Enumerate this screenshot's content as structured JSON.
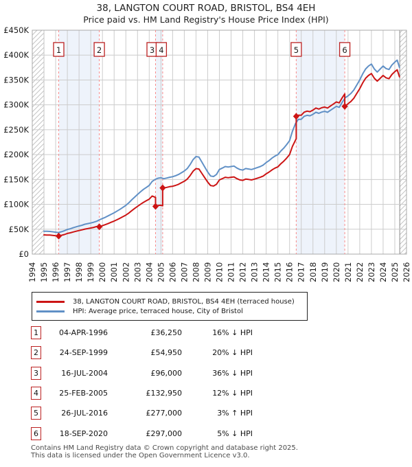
{
  "title": "38, LANGTON COURT ROAD, BRISTOL, BS4 4EH",
  "subtitle": "Price paid vs. HM Land Registry's House Price Index (HPI)",
  "colors": {
    "property_line": "#cc1414",
    "hpi_line": "#6090c6",
    "sale_marker": "#cc1414",
    "dashed_line": "#f98b8b",
    "band": "#eef3fb",
    "grid": "#cccccc",
    "border": "#a8a8a8",
    "hatch": "#c4c4c4",
    "boundary": "#8a8a8a",
    "label_box_border": "#bb2020"
  },
  "legend": {
    "series1": "38, LANGTON COURT ROAD, BRISTOL, BS4 4EH (terraced house)",
    "series2": "HPI: Average price, terraced house, City of Bristol"
  },
  "sales_table": [
    {
      "num": "1",
      "date": "04-APR-1996",
      "price": "£36,250",
      "pct": "16% ↓ HPI"
    },
    {
      "num": "2",
      "date": "24-SEP-1999",
      "price": "£54,950",
      "pct": "20% ↓ HPI"
    },
    {
      "num": "3",
      "date": "16-JUL-2004",
      "price": "£96,000",
      "pct": "36% ↓ HPI"
    },
    {
      "num": "4",
      "date": "25-FEB-2005",
      "price": "£132,950",
      "pct": "12% ↓ HPI"
    },
    {
      "num": "5",
      "date": "26-JUL-2016",
      "price": "£277,000",
      "pct": "3% ↑ HPI"
    },
    {
      "num": "6",
      "date": "18-SEP-2020",
      "price": "£297,000",
      "pct": "5% ↓ HPI"
    }
  ],
  "footer": {
    "line1": "Contains HM Land Registry data © Crown copyright and database right 2025.",
    "line2": "This data is licensed under the Open Government Licence v3.0."
  },
  "chart_data": {
    "type": "line",
    "title": "38, LANGTON COURT ROAD, BRISTOL, BS4 4EH",
    "subtitle": "Price paid vs. HM Land Registry's House Price Index (HPI)",
    "x_axis": {
      "min": 1994,
      "max": 2026,
      "ticks": [
        1994,
        1995,
        1996,
        1997,
        1998,
        1999,
        2000,
        2001,
        2002,
        2003,
        2004,
        2005,
        2006,
        2007,
        2008,
        2009,
        2010,
        2011,
        2012,
        2013,
        2014,
        2015,
        2016,
        2017,
        2018,
        2019,
        2020,
        2021,
        2022,
        2023,
        2024,
        2025,
        2026
      ]
    },
    "y_axis": {
      "min": 0,
      "max": 450,
      "unit": "GBP thousands",
      "tick_values": [
        0,
        50,
        100,
        150,
        200,
        250,
        300,
        350,
        400,
        450
      ],
      "tick_labels": [
        "£0",
        "£50K",
        "£100K",
        "£150K",
        "£200K",
        "£250K",
        "£300K",
        "£350K",
        "£400K",
        "£450K"
      ]
    },
    "grid": true,
    "legend_position": "below",
    "data_start": 1995.0,
    "data_end": 2025.42,
    "hatch_regions": [
      [
        1994.0,
        1995.0
      ],
      [
        2025.42,
        2026.0
      ]
    ],
    "bands": [
      [
        1996.26,
        1999.73
      ],
      [
        2004.54,
        2005.15
      ],
      [
        2016.57,
        2020.72
      ]
    ],
    "sale_markers": [
      {
        "n": "1",
        "x": 1996.26,
        "y": 36.25
      },
      {
        "n": "2",
        "x": 1999.73,
        "y": 54.95
      },
      {
        "n": "3",
        "x": 2004.54,
        "y": 96.0
      },
      {
        "n": "4",
        "x": 2005.15,
        "y": 132.95
      },
      {
        "n": "5",
        "x": 2016.57,
        "y": 277.0
      },
      {
        "n": "6",
        "x": 2020.72,
        "y": 297.0
      }
    ],
    "series": [
      {
        "id": "property",
        "name": "38, LANGTON COURT ROAD, BRISTOL, BS4 4EH (terraced house)",
        "color": "#cc1414",
        "points": [
          [
            1995.0,
            38.6
          ],
          [
            1995.25,
            38.4
          ],
          [
            1995.5,
            38.2
          ],
          [
            1995.75,
            37.6
          ],
          [
            1996.0,
            36.9
          ],
          [
            1996.26,
            36.25
          ],
          [
            1996.5,
            37.8
          ],
          [
            1996.75,
            39.4
          ],
          [
            1997.0,
            41.5
          ],
          [
            1997.25,
            42.8
          ],
          [
            1997.5,
            44.5
          ],
          [
            1997.75,
            46.0
          ],
          [
            1998.0,
            47.4
          ],
          [
            1998.25,
            48.7
          ],
          [
            1998.5,
            50.3
          ],
          [
            1998.75,
            51.4
          ],
          [
            1999.0,
            52.4
          ],
          [
            1999.25,
            53.7
          ],
          [
            1999.5,
            55.4
          ],
          [
            1999.73,
            54.95
          ],
          [
            2000.0,
            57.2
          ],
          [
            2000.25,
            59.2
          ],
          [
            2000.5,
            61.6
          ],
          [
            2000.75,
            64.0
          ],
          [
            2001.0,
            66.4
          ],
          [
            2001.25,
            69.2
          ],
          [
            2001.5,
            72.0
          ],
          [
            2001.75,
            75.2
          ],
          [
            2002.0,
            78.4
          ],
          [
            2002.25,
            82.4
          ],
          [
            2002.5,
            87.2
          ],
          [
            2002.75,
            91.6
          ],
          [
            2003.0,
            96.0
          ],
          [
            2003.25,
            100.0
          ],
          [
            2003.5,
            104.0
          ],
          [
            2003.75,
            107.2
          ],
          [
            2004.0,
            110.4
          ],
          [
            2004.25,
            116.8
          ],
          [
            2004.54,
            114.0
          ],
          [
            2004.54,
            96.0
          ],
          [
            2004.75,
            97.6
          ],
          [
            2005.0,
            98.2
          ],
          [
            2005.15,
            97.0
          ],
          [
            2005.15,
            132.95
          ],
          [
            2005.25,
            132.9
          ],
          [
            2005.5,
            134.2
          ],
          [
            2005.75,
            135.5
          ],
          [
            2006.0,
            136.4
          ],
          [
            2006.25,
            138.1
          ],
          [
            2006.5,
            140.3
          ],
          [
            2006.75,
            143.4
          ],
          [
            2007.0,
            146.5
          ],
          [
            2007.25,
            150.8
          ],
          [
            2007.5,
            157.9
          ],
          [
            2007.75,
            166.6
          ],
          [
            2008.0,
            171.9
          ],
          [
            2008.25,
            171.0
          ],
          [
            2008.5,
            162.2
          ],
          [
            2008.75,
            153.5
          ],
          [
            2009.0,
            144.7
          ],
          [
            2009.25,
            137.7
          ],
          [
            2009.5,
            136.8
          ],
          [
            2009.75,
            140.3
          ],
          [
            2010.0,
            149.1
          ],
          [
            2010.25,
            151.7
          ],
          [
            2010.5,
            154.4
          ],
          [
            2010.75,
            153.5
          ],
          [
            2011.0,
            154.4
          ],
          [
            2011.25,
            155.2
          ],
          [
            2011.5,
            151.7
          ],
          [
            2011.75,
            149.1
          ],
          [
            2012.0,
            148.2
          ],
          [
            2012.25,
            150.8
          ],
          [
            2012.5,
            150.0
          ],
          [
            2012.75,
            149.1
          ],
          [
            2013.0,
            150.8
          ],
          [
            2013.25,
            152.6
          ],
          [
            2013.5,
            154.4
          ],
          [
            2013.75,
            157.0
          ],
          [
            2014.0,
            161.4
          ],
          [
            2014.25,
            164.9
          ],
          [
            2014.5,
            169.3
          ],
          [
            2014.75,
            172.8
          ],
          [
            2015.0,
            175.4
          ],
          [
            2015.25,
            181.5
          ],
          [
            2015.5,
            186.8
          ],
          [
            2015.75,
            192.9
          ],
          [
            2016.0,
            200.0
          ],
          [
            2016.25,
            216.6
          ],
          [
            2016.57,
            232.0
          ],
          [
            2016.57,
            277.0
          ],
          [
            2016.75,
            279.1
          ],
          [
            2017.0,
            279.1
          ],
          [
            2017.25,
            285.3
          ],
          [
            2017.5,
            287.4
          ],
          [
            2017.75,
            286.3
          ],
          [
            2018.0,
            289.4
          ],
          [
            2018.25,
            293.6
          ],
          [
            2018.5,
            291.5
          ],
          [
            2018.75,
            294.1
          ],
          [
            2019.0,
            295.6
          ],
          [
            2019.25,
            293.6
          ],
          [
            2019.5,
            297.7
          ],
          [
            2019.75,
            301.8
          ],
          [
            2020.0,
            305.9
          ],
          [
            2020.25,
            303.9
          ],
          [
            2020.5,
            314.2
          ],
          [
            2020.72,
            322.0
          ],
          [
            2020.72,
            297.0
          ],
          [
            2021.0,
            302.1
          ],
          [
            2021.25,
            306.9
          ],
          [
            2021.5,
            313.5
          ],
          [
            2021.75,
            323.0
          ],
          [
            2022.0,
            332.5
          ],
          [
            2022.25,
            343.9
          ],
          [
            2022.5,
            353.4
          ],
          [
            2022.75,
            359.1
          ],
          [
            2023.0,
            362.9
          ],
          [
            2023.25,
            353.4
          ],
          [
            2023.5,
            347.7
          ],
          [
            2023.75,
            353.4
          ],
          [
            2024.0,
            359.1
          ],
          [
            2024.25,
            354.4
          ],
          [
            2024.5,
            352.5
          ],
          [
            2024.75,
            361.0
          ],
          [
            2025.0,
            366.7
          ],
          [
            2025.2,
            370.5
          ],
          [
            2025.4,
            356.3
          ]
        ]
      },
      {
        "id": "hpi",
        "name": "HPI: Average price, terraced house, City of Bristol",
        "color": "#6090c6",
        "points": [
          [
            1995.0,
            46.0
          ],
          [
            1995.25,
            45.8
          ],
          [
            1995.5,
            45.5
          ],
          [
            1995.75,
            44.8
          ],
          [
            1996.0,
            44.0
          ],
          [
            1996.25,
            43.3
          ],
          [
            1996.5,
            45.0
          ],
          [
            1996.75,
            47.0
          ],
          [
            1997.0,
            49.5
          ],
          [
            1997.25,
            51.0
          ],
          [
            1997.5,
            53.0
          ],
          [
            1997.75,
            54.8
          ],
          [
            1998.0,
            56.5
          ],
          [
            1998.25,
            58.0
          ],
          [
            1998.5,
            60.0
          ],
          [
            1998.75,
            61.3
          ],
          [
            1999.0,
            62.5
          ],
          [
            1999.25,
            64.0
          ],
          [
            1999.5,
            66.0
          ],
          [
            1999.75,
            69.0
          ],
          [
            2000.0,
            71.5
          ],
          [
            2000.25,
            74.0
          ],
          [
            2000.5,
            77.0
          ],
          [
            2000.75,
            80.0
          ],
          [
            2001.0,
            83.0
          ],
          [
            2001.25,
            86.5
          ],
          [
            2001.5,
            90.0
          ],
          [
            2001.75,
            94.0
          ],
          [
            2002.0,
            98.0
          ],
          [
            2002.25,
            103.0
          ],
          [
            2002.5,
            109.0
          ],
          [
            2002.75,
            114.5
          ],
          [
            2003.0,
            120.0
          ],
          [
            2003.25,
            125.0
          ],
          [
            2003.5,
            130.0
          ],
          [
            2003.75,
            134.0
          ],
          [
            2004.0,
            138.0
          ],
          [
            2004.25,
            146.0
          ],
          [
            2004.5,
            150.0
          ],
          [
            2004.75,
            152.5
          ],
          [
            2005.0,
            153.5
          ],
          [
            2005.25,
            151.5
          ],
          [
            2005.5,
            153.0
          ],
          [
            2005.75,
            154.5
          ],
          [
            2006.0,
            155.5
          ],
          [
            2006.25,
            157.5
          ],
          [
            2006.5,
            160.0
          ],
          [
            2006.75,
            163.5
          ],
          [
            2007.0,
            167.0
          ],
          [
            2007.25,
            172.0
          ],
          [
            2007.5,
            180.0
          ],
          [
            2007.75,
            190.0
          ],
          [
            2008.0,
            196.0
          ],
          [
            2008.25,
            195.0
          ],
          [
            2008.5,
            185.0
          ],
          [
            2008.75,
            175.0
          ],
          [
            2009.0,
            165.0
          ],
          [
            2009.25,
            157.0
          ],
          [
            2009.5,
            156.0
          ],
          [
            2009.75,
            160.0
          ],
          [
            2010.0,
            170.0
          ],
          [
            2010.25,
            173.0
          ],
          [
            2010.5,
            176.0
          ],
          [
            2010.75,
            175.0
          ],
          [
            2011.0,
            176.0
          ],
          [
            2011.25,
            177.0
          ],
          [
            2011.5,
            173.0
          ],
          [
            2011.75,
            170.0
          ],
          [
            2012.0,
            169.0
          ],
          [
            2012.25,
            172.0
          ],
          [
            2012.5,
            171.0
          ],
          [
            2012.75,
            170.0
          ],
          [
            2013.0,
            172.0
          ],
          [
            2013.25,
            174.0
          ],
          [
            2013.5,
            176.0
          ],
          [
            2013.75,
            179.0
          ],
          [
            2014.0,
            184.0
          ],
          [
            2014.25,
            188.0
          ],
          [
            2014.5,
            193.0
          ],
          [
            2014.75,
            197.0
          ],
          [
            2015.0,
            200.0
          ],
          [
            2015.25,
            207.0
          ],
          [
            2015.5,
            213.0
          ],
          [
            2015.75,
            220.0
          ],
          [
            2016.0,
            228.0
          ],
          [
            2016.25,
            247.0
          ],
          [
            2016.5,
            262.0
          ],
          [
            2016.75,
            271.0
          ],
          [
            2017.0,
            271.0
          ],
          [
            2017.25,
            277.0
          ],
          [
            2017.5,
            279.0
          ],
          [
            2017.75,
            278.0
          ],
          [
            2018.0,
            281.0
          ],
          [
            2018.25,
            285.0
          ],
          [
            2018.5,
            283.0
          ],
          [
            2018.75,
            285.5
          ],
          [
            2019.0,
            287.0
          ],
          [
            2019.25,
            285.0
          ],
          [
            2019.5,
            289.0
          ],
          [
            2019.75,
            293.0
          ],
          [
            2020.0,
            297.0
          ],
          [
            2020.25,
            295.0
          ],
          [
            2020.5,
            305.0
          ],
          [
            2020.75,
            314.0
          ],
          [
            2021.0,
            318.0
          ],
          [
            2021.25,
            323.0
          ],
          [
            2021.5,
            330.0
          ],
          [
            2021.75,
            340.0
          ],
          [
            2022.0,
            350.0
          ],
          [
            2022.25,
            362.0
          ],
          [
            2022.5,
            372.0
          ],
          [
            2022.75,
            378.0
          ],
          [
            2023.0,
            382.0
          ],
          [
            2023.25,
            372.0
          ],
          [
            2023.5,
            366.0
          ],
          [
            2023.75,
            372.0
          ],
          [
            2024.0,
            378.0
          ],
          [
            2024.25,
            373.0
          ],
          [
            2024.5,
            371.0
          ],
          [
            2024.75,
            380.0
          ],
          [
            2025.0,
            386.0
          ],
          [
            2025.2,
            390.0
          ],
          [
            2025.4,
            375.0
          ]
        ]
      }
    ]
  }
}
